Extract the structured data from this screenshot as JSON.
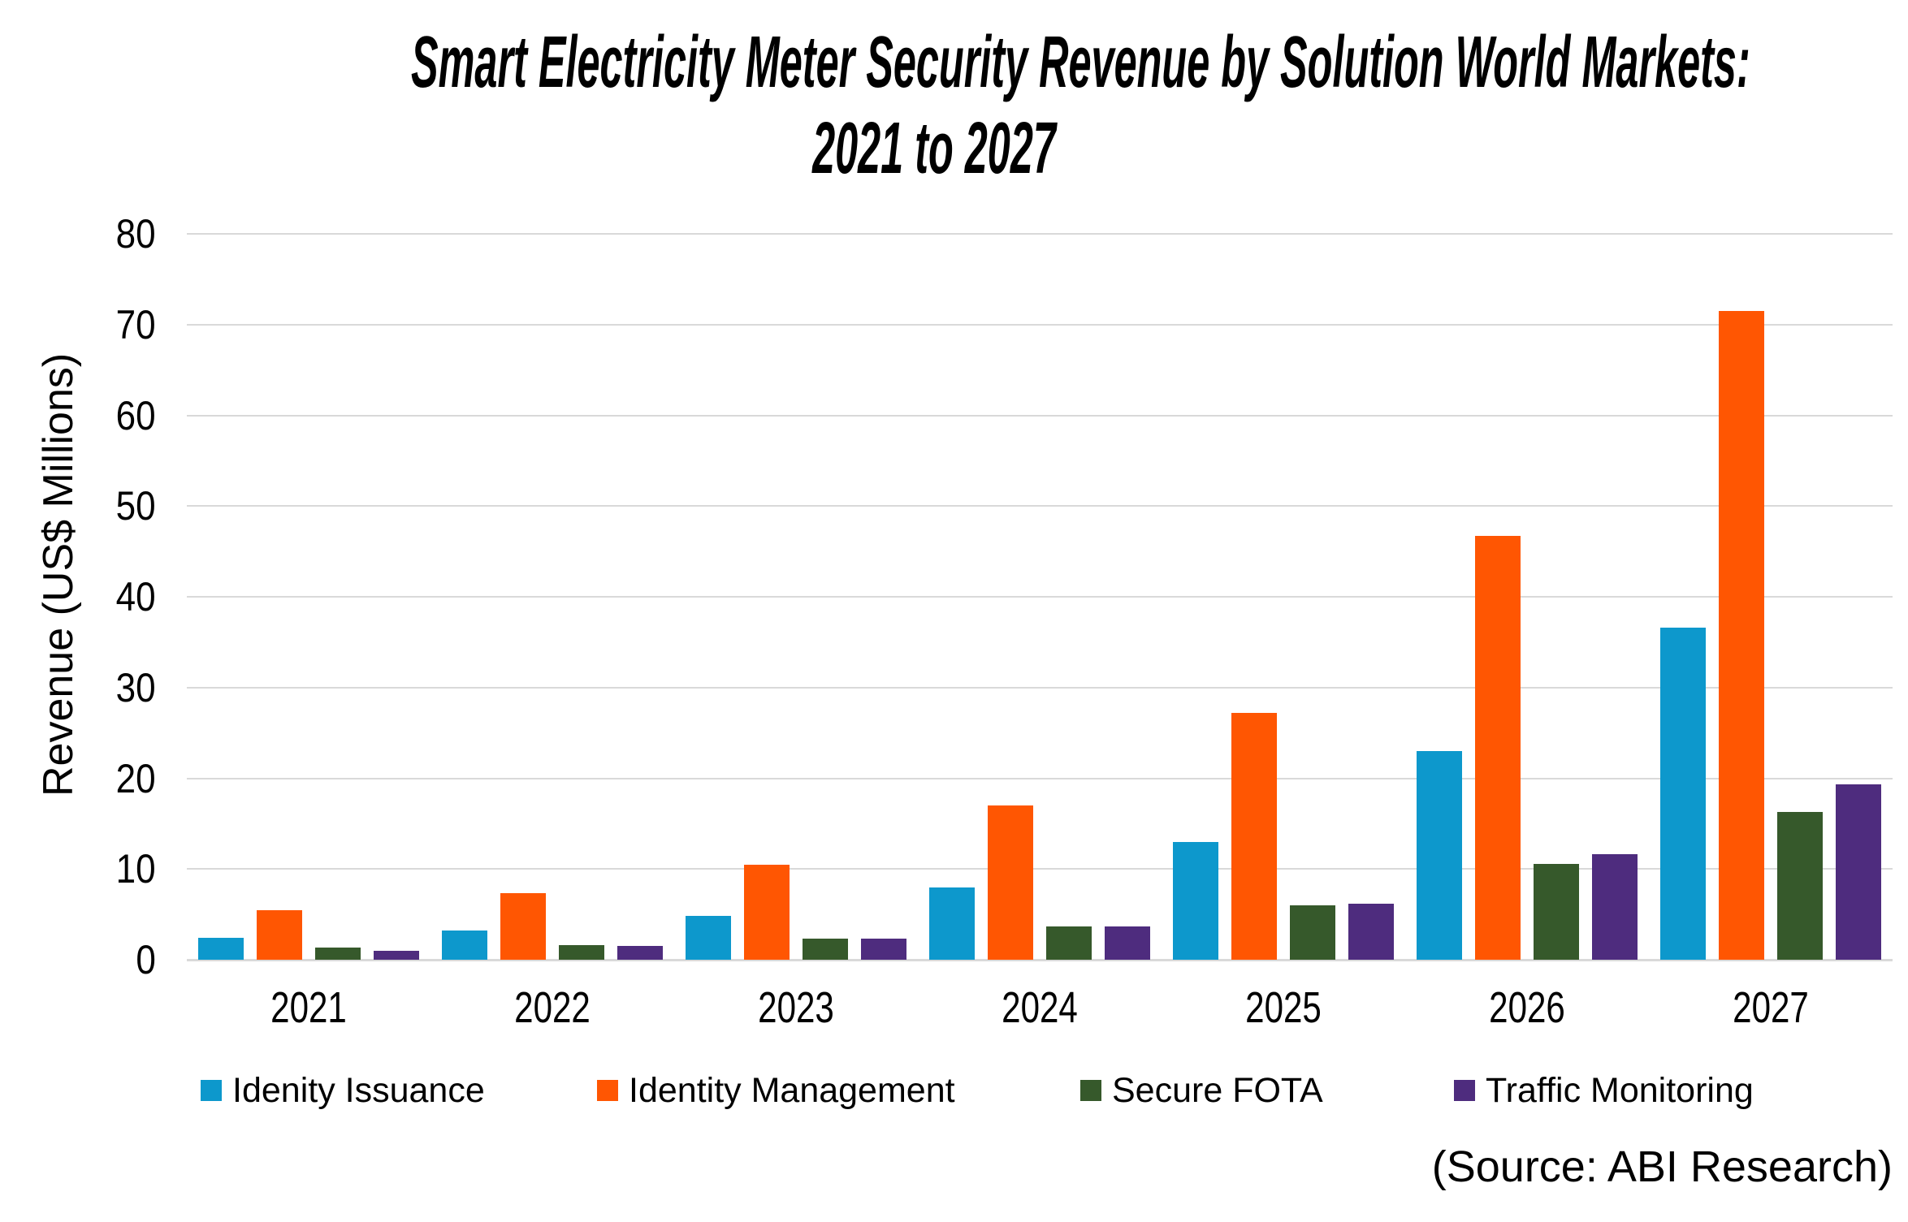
{
  "title": {
    "line1": "Smart Electricity Meter Security Revenue by Solution World Markets:",
    "line2": "2021 to 2027"
  },
  "source_note": "(Source: ABI Research)",
  "chart_data": {
    "type": "bar",
    "title": "Smart Electricity Meter Security Revenue by Solution World Markets: 2021 to 2027",
    "ylabel": "Revenue (US$ Millions)",
    "xlabel": "",
    "ylim": [
      0,
      80
    ],
    "ytick_step": 10,
    "ytick_labels": [
      "0",
      "10",
      "20",
      "30",
      "40",
      "50",
      "60",
      "70",
      "80"
    ],
    "grid": true,
    "gridline_color": "#D9D9D9",
    "legend_position": "bottom",
    "categories": [
      "2021",
      "2022",
      "2023",
      "2024",
      "2025",
      "2026",
      "2027"
    ],
    "series": [
      {
        "name": "Idenity Issuance",
        "color": "#0D98CC",
        "values": [
          2.4,
          3.2,
          4.8,
          8.0,
          13.0,
          23.0,
          36.6
        ]
      },
      {
        "name": "Identity Management",
        "color": "#FF5602",
        "values": [
          5.5,
          7.3,
          10.5,
          17.0,
          27.2,
          46.7,
          71.5
        ]
      },
      {
        "name": "Secure FOTA",
        "color": "#36592B",
        "values": [
          1.3,
          1.6,
          2.3,
          3.7,
          6.0,
          10.6,
          16.3
        ]
      },
      {
        "name": "Traffic Monitoring",
        "color": "#4E2C7E",
        "values": [
          1.0,
          1.5,
          2.3,
          3.7,
          6.2,
          11.6,
          19.3
        ]
      }
    ]
  }
}
